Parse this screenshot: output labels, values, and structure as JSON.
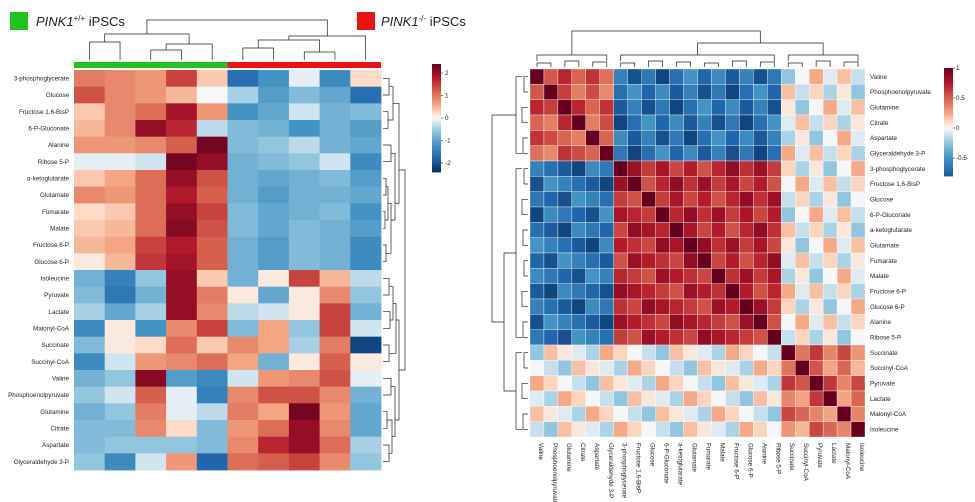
{
  "colors": {
    "group_wt": "#22c21f",
    "group_ko": "#ee1111",
    "low": "#053061",
    "mid": "#f7f7f7",
    "high": "#67001f"
  },
  "header": {
    "wt": {
      "gene": "PINK1",
      "sup": "+/+",
      "rest": " iPSCs"
    },
    "ko": {
      "gene": "PINK1",
      "sup": "-/-",
      "rest": " iPSCs"
    }
  },
  "chart_data": [
    {
      "type": "heatmap",
      "title": "",
      "xlabel": "",
      "ylabel": "",
      "column_groups": [
        "PINK1+/+ iPSCs",
        "PINK1-/- iPSCs"
      ],
      "columns_per_group": 5,
      "rows": [
        "3-phosphoglycerate",
        "Glucose",
        "Fructose 1,6-BisP",
        "6-P-Gluconate",
        "Alanine",
        "Ribose 5-P",
        "α-ketoglutarate",
        "Glutamate",
        "Fumarate",
        "Malate",
        "Fructose 6-P",
        "Glucose 6-P",
        "Isoleucine",
        "Pyruvate",
        "Lactate",
        "Malonyl-CoA",
        "Succinate",
        "Succinyl-CoA",
        "Valine",
        "Phosphoenolpyruvate",
        "Glutamine",
        "Citrate",
        "Aspartate",
        "Glyceraldehyde 3-P"
      ],
      "legend": {
        "ticks": [
          "2",
          "1",
          "0",
          "-1",
          "-2"
        ],
        "range": [
          -2.4,
          2.4
        ],
        "position": "right"
      }
    },
    {
      "type": "heatmap",
      "title": "",
      "xlabel": "",
      "ylabel": "",
      "labels": [
        "Valine",
        "Phosphoenolpyruvate",
        "Glutamine",
        "Citrate",
        "Aspartate",
        "Glyceraldehyde 3-P",
        "3-phosphoglycerate",
        "Fructose 1,6-BisP",
        "Glucose",
        "6-P-Gluconate",
        "a-ketoglutarate",
        "Glutamate",
        "Fumarate",
        "Malate",
        "Fructose 6-P",
        "Glucose 6-P",
        "Alanine",
        "Ribose 5-P",
        "Succinate",
        "Succinyl-CoA",
        "Pyruvate",
        "Lactate",
        "Malonyl-CoA",
        "Isoleucine"
      ],
      "legend": {
        "ticks": [
          "1",
          "0.5",
          "0",
          "-0.5"
        ],
        "range": [
          -0.8,
          1
        ],
        "position": "right"
      }
    }
  ]
}
